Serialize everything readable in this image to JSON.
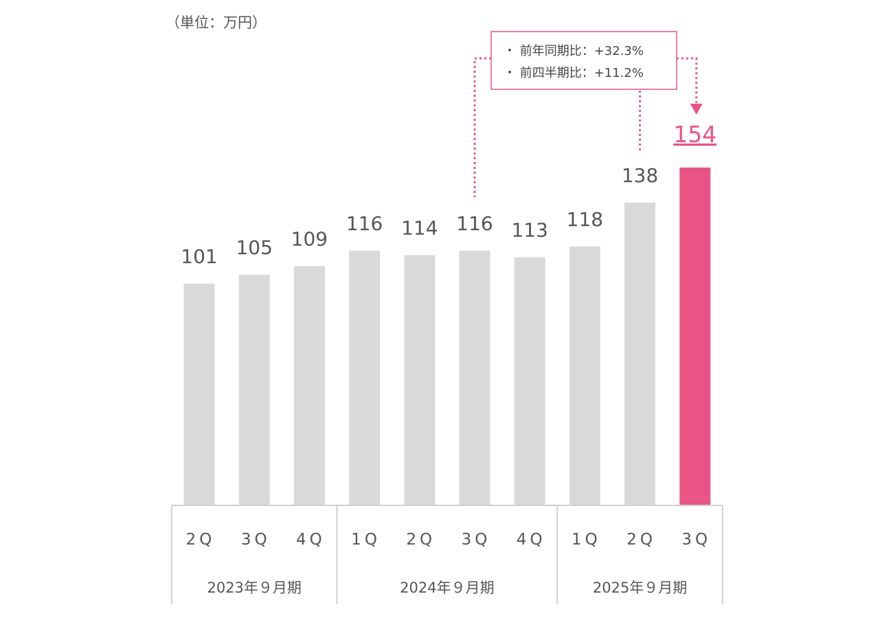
{
  "chart_data": {
    "type": "bar",
    "unit_label": "（単位：万円）",
    "categories": [
      "2Q",
      "3Q",
      "4Q",
      "1Q",
      "2Q",
      "3Q",
      "4Q",
      "1Q",
      "2Q",
      "3Q"
    ],
    "values": [
      101,
      105,
      109,
      116,
      114,
      116,
      113,
      118,
      138,
      154
    ],
    "groups": [
      {
        "label": "2023年９月期",
        "count": 3
      },
      {
        "label": "2024年９月期",
        "count": 4
      },
      {
        "label": "2025年９月期",
        "count": 3
      }
    ],
    "highlight_index": 9,
    "ylim": [
      0,
      154
    ],
    "annotations": {
      "yoy": "・ 前年同期比：+32.3%",
      "qoq": "・ 前四半期比：+11.2%"
    },
    "colors": {
      "bar": "#d9d9d9",
      "highlight": "#e85585",
      "text": "#555555",
      "axis": "#d0d0d0",
      "annotation": "#e85585"
    }
  }
}
